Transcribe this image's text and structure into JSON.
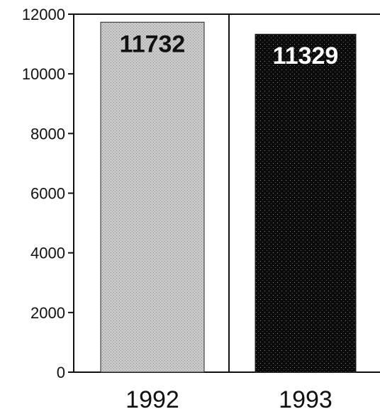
{
  "chart_data": {
    "type": "bar",
    "categories": [
      "1992",
      "1993"
    ],
    "values": [
      11732,
      11329
    ],
    "data_labels": [
      "11732",
      "11329"
    ],
    "ylim": [
      0,
      12000
    ],
    "yticks": [
      "0",
      "2000",
      "4000",
      "6000",
      "8000",
      "10000",
      "12000"
    ],
    "grid": false,
    "legend": "none",
    "colors": {
      "bar_1992": "#c4c4c4",
      "bar_1993": "#0d0d0d",
      "label_1992": "#111111",
      "label_1993": "#ffffff"
    }
  }
}
